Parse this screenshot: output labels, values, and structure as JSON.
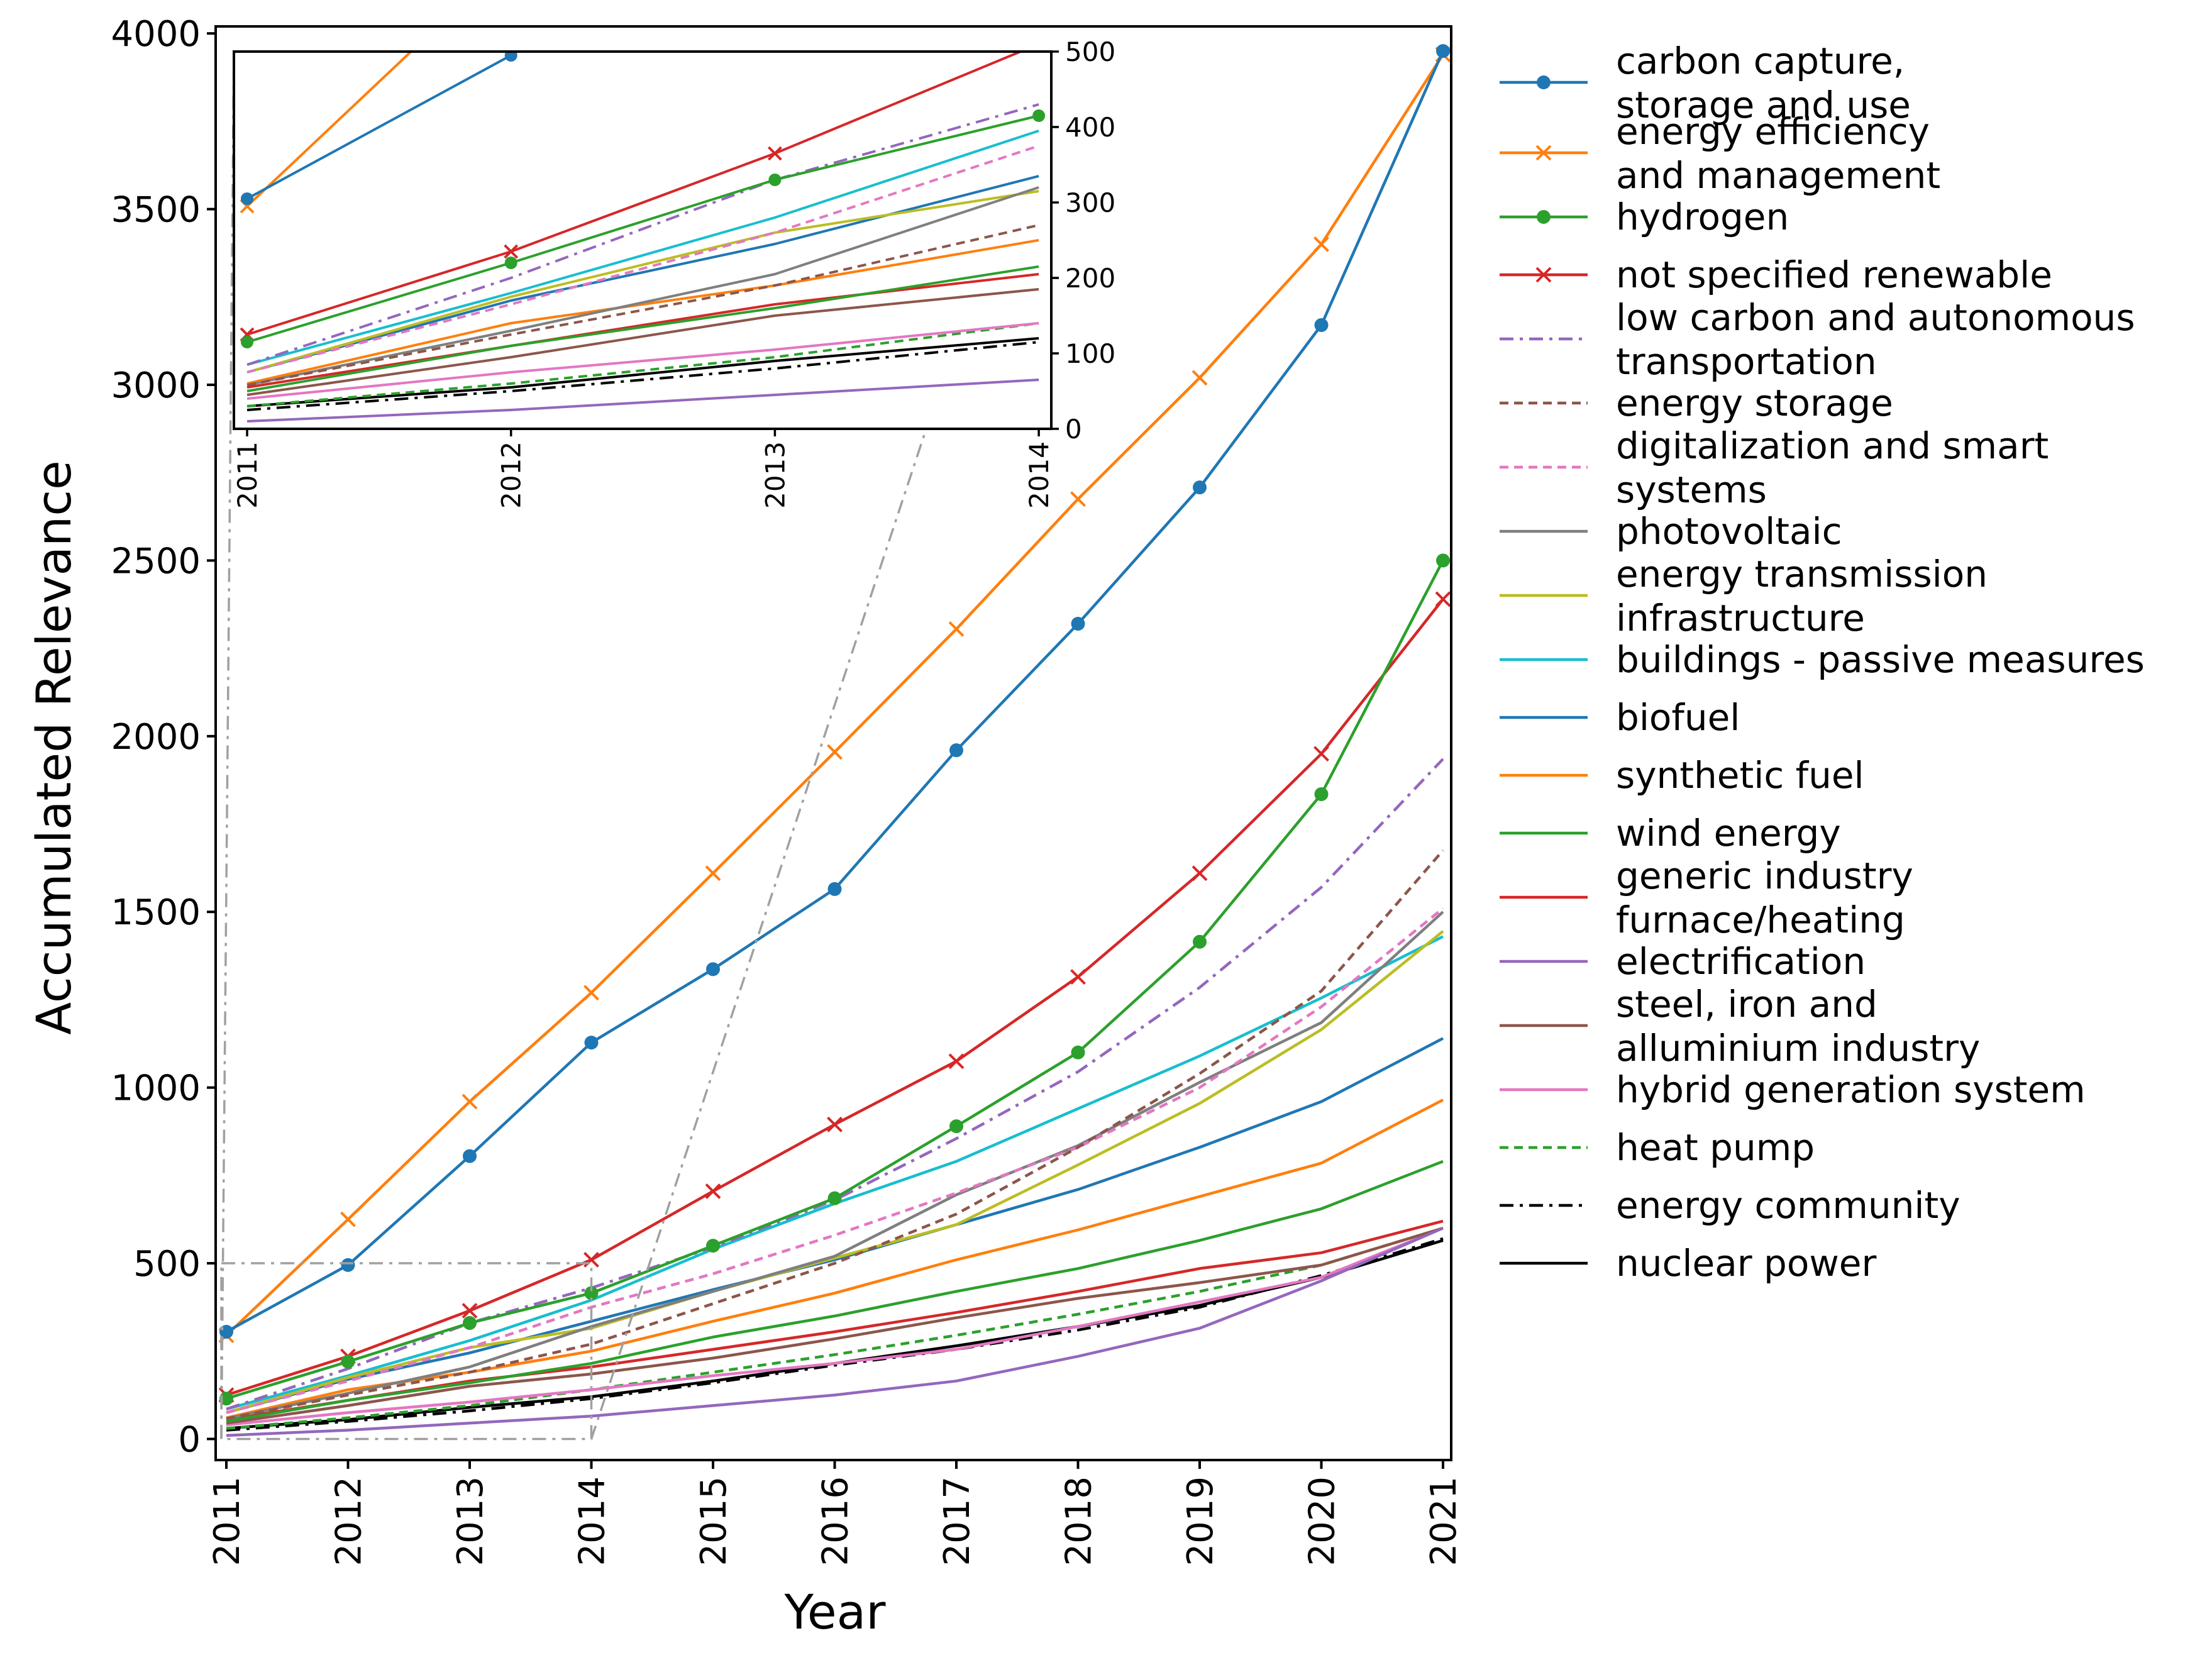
{
  "chart_data": {
    "type": "line",
    "xlabel": "Year",
    "ylabel": "Accumulated Relevance",
    "x": [
      2011,
      2012,
      2013,
      2014,
      2015,
      2016,
      2017,
      2018,
      2019,
      2020,
      2021
    ],
    "x_tick_labels": [
      "2011",
      "2012",
      "2013",
      "2014",
      "2015",
      "2016",
      "2017",
      "2018",
      "2019",
      "2020",
      "2021"
    ],
    "ylim": [
      -60,
      4020
    ],
    "y_ticks": [
      0,
      500,
      1000,
      1500,
      2000,
      2500,
      3000,
      3500,
      4000
    ],
    "y_tick_labels": [
      "0",
      "500",
      "1000",
      "1500",
      "2000",
      "2500",
      "3000",
      "3500",
      "4000"
    ],
    "legend_position": "outside right",
    "inset": {
      "x_range": [
        2011,
        2014
      ],
      "ylim": [
        0,
        500
      ],
      "y_ticks": [
        0,
        100,
        200,
        300,
        400,
        500
      ],
      "y_tick_labels": [
        "0",
        "100",
        "200",
        "300",
        "400",
        "500"
      ],
      "x_tick_labels": [
        "2011",
        "2012",
        "2013",
        "2014"
      ]
    },
    "series": [
      {
        "name": "carbon capture, storage and use",
        "label_lines": [
          "carbon capture,",
          "storage and use"
        ],
        "color": "#1f77b4",
        "dash": "",
        "marker": "circle",
        "values": [
          305,
          495,
          805,
          1128,
          1337,
          1565,
          1960,
          2320,
          2708,
          3170,
          3950
        ]
      },
      {
        "name": "energy efficiency and management",
        "label_lines": [
          "energy efficiency",
          "and management"
        ],
        "color": "#ff7f0e",
        "dash": "",
        "marker": "x",
        "values": [
          295,
          625,
          960,
          1270,
          1610,
          1955,
          2305,
          2675,
          3020,
          3400,
          3940
        ]
      },
      {
        "name": "hydrogen",
        "label_lines": [
          "hydrogen"
        ],
        "color": "#2ca02c",
        "dash": "",
        "marker": "circle",
        "values": [
          115,
          220,
          330,
          415,
          550,
          685,
          890,
          1100,
          1415,
          1835,
          2500
        ]
      },
      {
        "name": "not specified renewable",
        "label_lines": [
          "not specified renewable"
        ],
        "color": "#d62728",
        "dash": "",
        "marker": "x",
        "values": [
          125,
          235,
          365,
          510,
          705,
          895,
          1075,
          1315,
          1610,
          1950,
          2390
        ]
      },
      {
        "name": "low carbon and autonomous transportation",
        "label_lines": [
          "low carbon and autonomous",
          "transportation"
        ],
        "color": "#9467bd",
        "dash": "22,10,5,10",
        "marker": "",
        "values": [
          85,
          200,
          330,
          430,
          545,
          680,
          855,
          1045,
          1285,
          1570,
          1935
        ]
      },
      {
        "name": "energy storage",
        "label_lines": [
          "energy storage"
        ],
        "color": "#8c564b",
        "dash": "14,9",
        "marker": "",
        "values": [
          58,
          125,
          190,
          270,
          385,
          500,
          640,
          830,
          1040,
          1275,
          1675
        ]
      },
      {
        "name": "digitalization and smart systems",
        "label_lines": [
          "digitalization and smart",
          "systems"
        ],
        "color": "#e377c2",
        "dash": "14,9",
        "marker": "",
        "values": [
          75,
          165,
          260,
          375,
          470,
          580,
          700,
          830,
          1000,
          1230,
          1510
        ]
      },
      {
        "name": "photovoltaic",
        "label_lines": [
          "photovoltaic"
        ],
        "color": "#7f7f7f",
        "dash": "",
        "marker": "",
        "values": [
          58,
          130,
          205,
          320,
          420,
          520,
          695,
          835,
          1015,
          1185,
          1500
        ]
      },
      {
        "name": "energy transmission infrastructure",
        "label_lines": [
          "energy transmission",
          "infrastructure"
        ],
        "color": "#bcbd22",
        "dash": "",
        "marker": "",
        "values": [
          75,
          175,
          260,
          315,
          420,
          515,
          610,
          780,
          955,
          1165,
          1445
        ]
      },
      {
        "name": "buildings - passive measures",
        "label_lines": [
          "buildings - passive measures"
        ],
        "color": "#17becf",
        "dash": "",
        "marker": "",
        "values": [
          85,
          180,
          280,
          395,
          540,
          670,
          790,
          940,
          1090,
          1255,
          1430
        ]
      },
      {
        "name": "biofuel",
        "label_lines": [
          "biofuel"
        ],
        "color": "#1f77b4",
        "dash": "",
        "marker": "",
        "values": [
          75,
          170,
          245,
          335,
          425,
          510,
          610,
          710,
          830,
          960,
          1140
        ]
      },
      {
        "name": "synthetic fuel",
        "label_lines": [
          "synthetic fuel"
        ],
        "color": "#ff7f0e",
        "dash": "",
        "marker": "",
        "values": [
          60,
          140,
          190,
          250,
          335,
          415,
          510,
          595,
          690,
          785,
          965
        ]
      },
      {
        "name": "wind energy",
        "label_lines": [
          "wind energy"
        ],
        "color": "#2ca02c",
        "dash": "",
        "marker": "",
        "values": [
          50,
          110,
          160,
          215,
          290,
          350,
          420,
          485,
          565,
          655,
          790
        ]
      },
      {
        "name": "generic industry furnace/heating",
        "label_lines": [
          "generic industry",
          "furnace/heating"
        ],
        "color": "#d62728",
        "dash": "",
        "marker": "",
        "values": [
          55,
          110,
          165,
          205,
          255,
          305,
          360,
          420,
          485,
          530,
          620
        ]
      },
      {
        "name": "electrification",
        "label_lines": [
          "electrification"
        ],
        "color": "#9467bd",
        "dash": "",
        "marker": "",
        "values": [
          10,
          25,
          45,
          65,
          95,
          125,
          165,
          235,
          315,
          450,
          600
        ]
      },
      {
        "name": "steel, iron and alluminium industry",
        "label_lines": [
          "steel, iron and",
          "alluminium industry"
        ],
        "color": "#8c564b",
        "dash": "",
        "marker": "",
        "values": [
          45,
          95,
          150,
          185,
          230,
          285,
          345,
          400,
          445,
          495,
          600
        ]
      },
      {
        "name": "hybrid generation system",
        "label_lines": [
          "hybrid generation system"
        ],
        "color": "#e377c2",
        "dash": "",
        "marker": "",
        "values": [
          40,
          75,
          105,
          140,
          180,
          215,
          255,
          320,
          390,
          460,
          600
        ]
      },
      {
        "name": "heat pump",
        "label_lines": [
          "heat pump"
        ],
        "color": "#2ca02c",
        "dash": "14,9",
        "marker": "",
        "values": [
          30,
          60,
          95,
          140,
          190,
          240,
          295,
          355,
          420,
          495,
          600
        ]
      },
      {
        "name": "energy community",
        "label_lines": [
          "energy community"
        ],
        "color": "#000000",
        "dash": "22,10,5,10",
        "marker": "",
        "values": [
          25,
          50,
          80,
          115,
          160,
          210,
          255,
          310,
          375,
          465,
          570
        ]
      },
      {
        "name": "nuclear power",
        "label_lines": [
          "nuclear power"
        ],
        "color": "#000000",
        "dash": "",
        "marker": "",
        "values": [
          30,
          55,
          90,
          120,
          165,
          215,
          265,
          320,
          380,
          460,
          565
        ]
      }
    ]
  }
}
